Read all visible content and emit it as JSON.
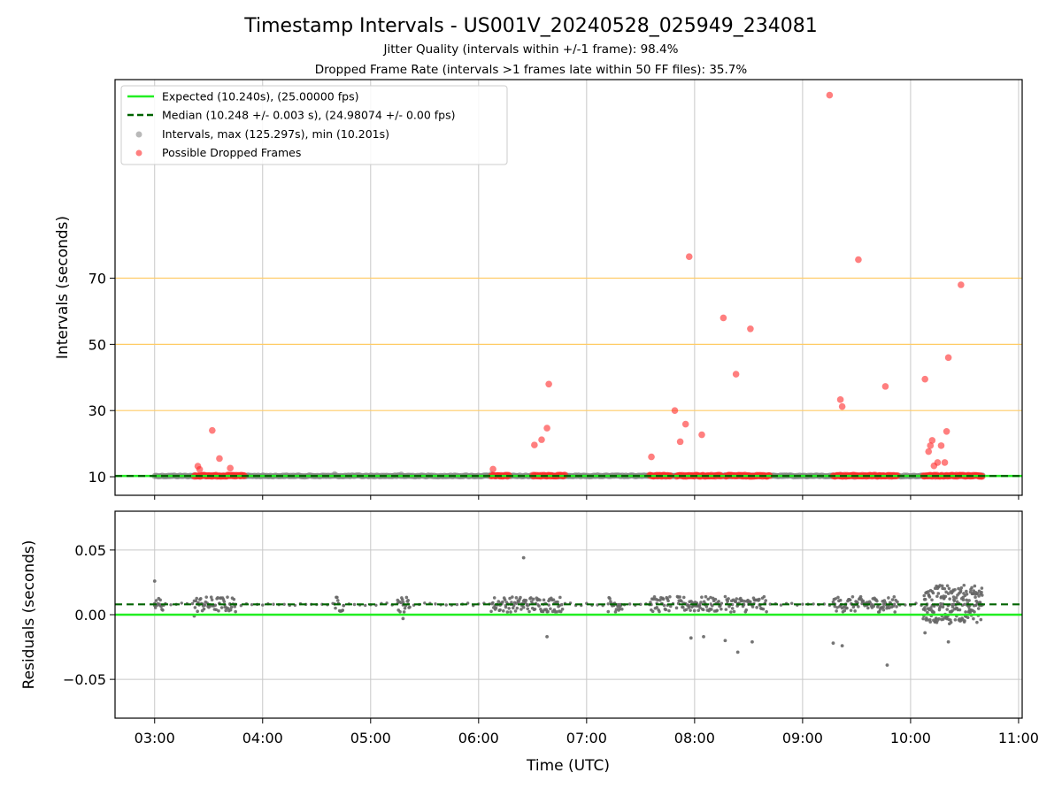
{
  "title": "Timestamp Intervals - US001V_20240528_025949_234081",
  "subtitle_1": "Jitter Quality (intervals within +/-1 frame): 98.4%",
  "subtitle_2": "Dropped Frame Rate (intervals >1 frames late within 50 FF files): 35.7%",
  "colors": {
    "expected": "#22ee22",
    "median": "#006400",
    "intervals": "#808080",
    "dropped": "#ff2a2a",
    "reference_lines": "#ffcc66",
    "grid": "#c8c8c8"
  },
  "chart_data": [
    {
      "type": "scatter",
      "xlabel": "",
      "ylabel": "Intervals (seconds)",
      "xlim": [
        "02:38",
        "11:02"
      ],
      "ylim": [
        4.4,
        130.0
      ],
      "yticks": [
        10,
        30,
        50,
        70
      ],
      "ytick_labels": [
        "10",
        "30",
        "50",
        "70"
      ],
      "grid": true,
      "legend_position": "upper-left",
      "reference_lines": [
        30,
        50,
        70
      ],
      "series": [
        {
          "name": "Expected (10.240s), (25.00000 fps)",
          "kind": "line",
          "style": "solid",
          "y": 10.24
        },
        {
          "name": "Median (10.248 +/- 0.003 s), (24.98074 +/- 0.00 fps)",
          "kind": "line",
          "style": "dashed",
          "y": 10.248
        },
        {
          "name": "Intervals, max (125.297s), min (10.201s)",
          "kind": "points",
          "segments": [
            [
              "03:00",
              "10:40"
            ]
          ],
          "y": 10.248
        },
        {
          "name": "Possible Dropped Frames",
          "kind": "points",
          "clusters": [
            [
              "03:22",
              "03:50"
            ],
            [
              "06:07",
              "06:17"
            ],
            [
              "06:30",
              "06:48"
            ],
            [
              "07:35",
              "07:47"
            ],
            [
              "07:50",
              "08:15"
            ],
            [
              "08:17",
              "08:42"
            ],
            [
              "09:17",
              "09:45"
            ],
            [
              "09:45",
              "09:53"
            ],
            [
              "10:07",
              "10:40"
            ]
          ],
          "y": 10.3,
          "outliers": [
            {
              "x": "03:24",
              "y": 13.2
            },
            {
              "x": "03:25",
              "y": 12.2
            },
            {
              "x": "03:32",
              "y": 24.0
            },
            {
              "x": "03:36",
              "y": 15.5
            },
            {
              "x": "03:42",
              "y": 12.6
            },
            {
              "x": "06:08",
              "y": 12.3
            },
            {
              "x": "06:31",
              "y": 19.6
            },
            {
              "x": "06:35",
              "y": 21.2
            },
            {
              "x": "06:38",
              "y": 24.7
            },
            {
              "x": "06:39",
              "y": 38.0
            },
            {
              "x": "07:36",
              "y": 16.0
            },
            {
              "x": "07:49",
              "y": 30.0
            },
            {
              "x": "07:52",
              "y": 20.6
            },
            {
              "x": "07:55",
              "y": 25.9
            },
            {
              "x": "07:57",
              "y": 76.5
            },
            {
              "x": "08:04",
              "y": 22.7
            },
            {
              "x": "08:16",
              "y": 58.0
            },
            {
              "x": "08:23",
              "y": 41.0
            },
            {
              "x": "08:31",
              "y": 54.7
            },
            {
              "x": "09:15",
              "y": 125.3
            },
            {
              "x": "09:21",
              "y": 33.3
            },
            {
              "x": "09:22",
              "y": 31.2
            },
            {
              "x": "09:31",
              "y": 75.6
            },
            {
              "x": "09:46",
              "y": 37.3
            },
            {
              "x": "10:08",
              "y": 39.5
            },
            {
              "x": "10:10",
              "y": 17.6
            },
            {
              "x": "10:11",
              "y": 19.4
            },
            {
              "x": "10:12",
              "y": 21.0
            },
            {
              "x": "10:13",
              "y": 13.3
            },
            {
              "x": "10:15",
              "y": 14.3
            },
            {
              "x": "10:17",
              "y": 19.4
            },
            {
              "x": "10:19",
              "y": 14.3
            },
            {
              "x": "10:20",
              "y": 23.7
            },
            {
              "x": "10:21",
              "y": 46.0
            },
            {
              "x": "10:28",
              "y": 68.0
            }
          ]
        }
      ]
    },
    {
      "type": "scatter",
      "xlabel": "Time (UTC)",
      "ylabel": "Residuals (seconds)",
      "xlim": [
        "02:38",
        "11:02"
      ],
      "ylim": [
        -0.08,
        0.08
      ],
      "yticks": [
        0.05,
        0.0,
        -0.05
      ],
      "ytick_labels": [
        "0.05",
        "0.00",
        "−0.05"
      ],
      "xticks": [
        "03:00",
        "04:00",
        "05:00",
        "06:00",
        "07:00",
        "08:00",
        "09:00",
        "10:00",
        "11:00"
      ],
      "grid": true,
      "series": [
        {
          "kind": "line",
          "style": "solid",
          "y": 0.0
        },
        {
          "kind": "line",
          "style": "dashed",
          "y": 0.008
        },
        {
          "kind": "points",
          "baseline": 0.008,
          "clusters": [
            [
              "03:00",
              "03:05"
            ],
            [
              "03:22",
              "03:45"
            ],
            [
              "04:40",
              "04:45"
            ],
            [
              "05:15",
              "05:22"
            ],
            [
              "06:07",
              "06:25"
            ],
            [
              "06:25",
              "06:47"
            ],
            [
              "07:12",
              "07:20"
            ],
            [
              "07:35",
              "07:47"
            ],
            [
              "07:50",
              "08:15"
            ],
            [
              "08:17",
              "08:40"
            ],
            [
              "09:17",
              "09:45"
            ],
            [
              "09:45",
              "09:53"
            ],
            [
              "10:07",
              "10:40"
            ]
          ],
          "outliers": [
            {
              "x": "03:00",
              "y": 0.026
            },
            {
              "x": "06:25",
              "y": 0.044
            },
            {
              "x": "06:38",
              "y": -0.017
            },
            {
              "x": "07:58",
              "y": -0.018
            },
            {
              "x": "08:05",
              "y": -0.017
            },
            {
              "x": "08:17",
              "y": -0.02
            },
            {
              "x": "08:24",
              "y": -0.029
            },
            {
              "x": "08:32",
              "y": -0.021
            },
            {
              "x": "09:17",
              "y": -0.022
            },
            {
              "x": "09:22",
              "y": -0.024
            },
            {
              "x": "09:47",
              "y": -0.039
            },
            {
              "x": "10:08",
              "y": -0.014
            },
            {
              "x": "10:21",
              "y": -0.021
            },
            {
              "x": "05:18",
              "y": -0.003
            },
            {
              "x": "03:22",
              "y": -0.001
            }
          ]
        }
      ]
    }
  ]
}
